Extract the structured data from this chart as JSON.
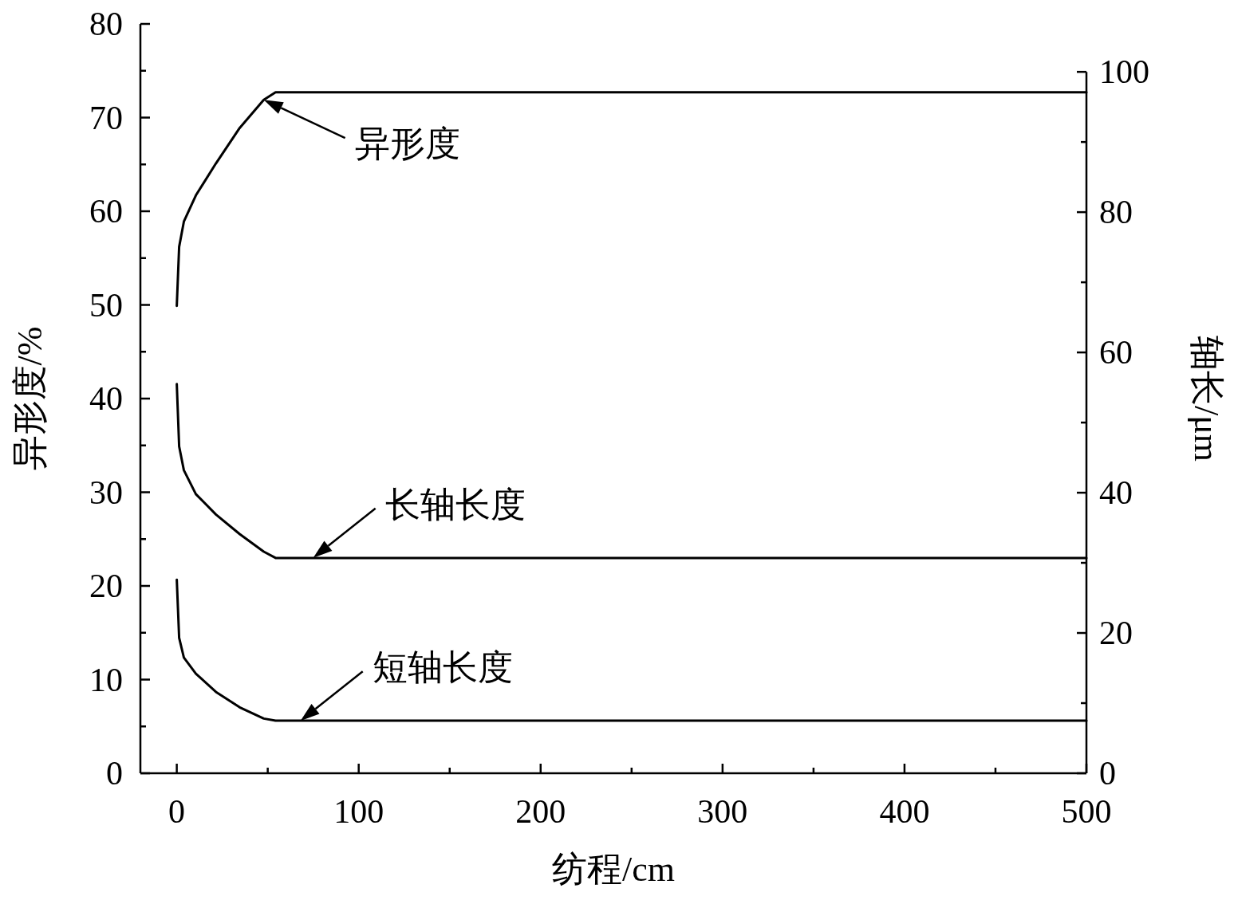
{
  "chart_data": {
    "type": "line",
    "xlabel": "纺程/cm",
    "ylabel": "异形度/%",
    "y2label": "轴长/μm",
    "xlim": [
      -20,
      500
    ],
    "xticks": [
      0,
      {
        "value": 50,
        "label": null
      },
      100,
      {
        "value": 150,
        "label": null
      },
      200,
      {
        "value": 250,
        "label": null
      },
      300,
      {
        "value": 350,
        "label": null
      },
      400,
      {
        "value": 450,
        "label": null
      },
      500
    ],
    "ylim": [
      0,
      80
    ],
    "yticks": [
      0,
      {
        "value": 5,
        "label": null
      },
      10,
      {
        "value": 15,
        "label": null
      },
      20,
      {
        "value": 25,
        "label": null
      },
      30,
      {
        "value": 35,
        "label": null
      },
      40,
      {
        "value": 45,
        "label": null
      },
      50,
      {
        "value": 55,
        "label": null
      },
      60,
      {
        "value": 65,
        "label": null
      },
      70,
      {
        "value": 75,
        "label": null
      },
      80
    ],
    "y2lim": [
      0,
      100
    ],
    "y2ticks": [
      0,
      {
        "value": 10,
        "label": null
      },
      20,
      {
        "value": 30,
        "label": null
      },
      40,
      {
        "value": 50,
        "label": null
      },
      60,
      {
        "value": 70,
        "label": null
      },
      80,
      {
        "value": 90,
        "label": null
      },
      100
    ],
    "series": [
      {
        "color": "#000000",
        "axis": "y",
        "x": [
          0,
          1.3,
          3.9,
          10.5,
          21.5,
          34.6,
          47.8,
          54.3,
          500
        ],
        "values": [
          49.9,
          56.2,
          58.9,
          61.7,
          65.1,
          68.9,
          71.9,
          72.7,
          72.7
        ]
      },
      {
        "color": "#000000",
        "axis": "y2",
        "x": [
          0,
          1.3,
          3.9,
          10.5,
          21.5,
          34.6,
          47.8,
          54.3,
          500
        ],
        "values": [
          55.5,
          46.6,
          43.2,
          39.8,
          36.9,
          34.1,
          31.6,
          30.7,
          30.7
        ]
      },
      {
        "color": "#000000",
        "axis": "y2",
        "x": [
          0,
          1.3,
          3.9,
          10.5,
          21.5,
          34.6,
          47.8,
          54.3,
          500
        ],
        "values": [
          27.6,
          19.3,
          16.5,
          14.2,
          11.6,
          9.4,
          7.8,
          7.5,
          7.5
        ]
      }
    ],
    "annotations": [
      {
        "text": "异形度",
        "x": 47.8,
        "y": 71.9
      },
      {
        "text": "长轴长度",
        "x": 75,
        "y": 23.0
      },
      {
        "text": "短轴长度",
        "x": 68,
        "y": 5.6
      }
    ],
    "grid": false
  }
}
